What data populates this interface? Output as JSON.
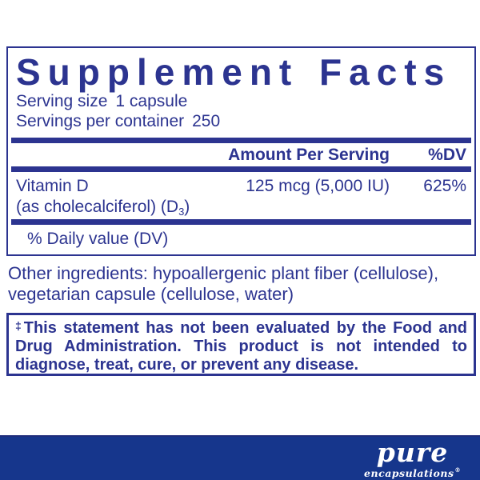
{
  "colors": {
    "navy": "#2C3490",
    "banner_blue": "#16368C",
    "background": "#FFFFFF",
    "logo_text": "#FFFFFF"
  },
  "facts": {
    "title": "Supplement Facts",
    "serving_size": {
      "label": "Serving size",
      "value": "1 capsule"
    },
    "servings_per_container": {
      "label": "Servings per container",
      "value": "250"
    },
    "header": {
      "amount_label": "Amount Per Serving",
      "dv_label": "%DV"
    },
    "rows": [
      {
        "name": "Vitamin D",
        "detail_pre": "(as cholecalciferol) (D",
        "detail_sub": "3",
        "detail_post": ")",
        "amount": "125 mcg (5,000 IU)",
        "dv": "625%"
      }
    ],
    "footnote": "% Daily value (DV)"
  },
  "other_ingredients": {
    "line1": "Other ingredients: hypoallergenic plant fiber (cellulose),",
    "line2": "vegetarian capsule (cellulose, water)"
  },
  "disclaimer": {
    "dagger": "‡",
    "line1": "This statement has not been evaluated by the Food and",
    "line2": "Drug Administration. This product is not intended to",
    "line3": "diagnose, treat, cure, or prevent any disease."
  },
  "brand": {
    "name": "pure",
    "subname": "encapsulations",
    "registered": "®"
  }
}
